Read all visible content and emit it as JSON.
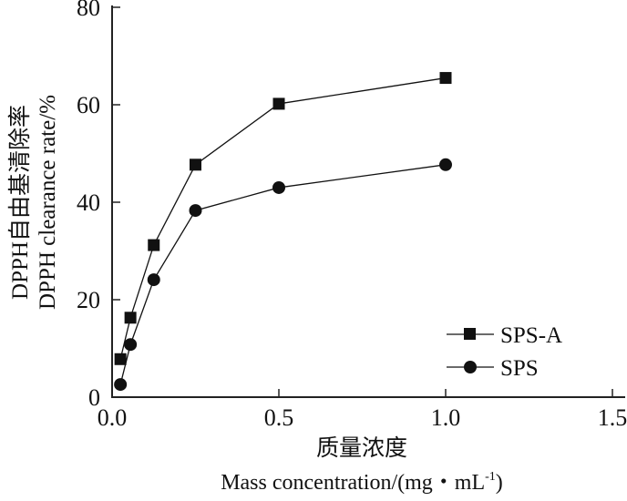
{
  "chart_data": {
    "type": "line",
    "title": "",
    "ylabel_cn": "DPPH自由基清除率",
    "ylabel": "DPPH clearance rate/%",
    "xlabel_cn": "质量浓度",
    "xlabel": "Mass concentration/(mg・mL",
    "xlabel_sup": "-1",
    "xlabel_end": ")",
    "xlim": [
      0,
      1.5
    ],
    "ylim": [
      0,
      80
    ],
    "xticks": [
      "0.0",
      "0.5",
      "1.0",
      "1.5"
    ],
    "xtick_values": [
      0,
      0.5,
      1.0,
      1.5
    ],
    "yticks": [
      "0",
      "20",
      "40",
      "60",
      "80"
    ],
    "ytick_values": [
      0,
      20,
      40,
      60,
      80
    ],
    "grid": false,
    "legend_position": "bottom-right",
    "x": [
      0.025,
      0.055,
      0.125,
      0.25,
      0.5,
      1.0
    ],
    "series": [
      {
        "name": "SPS-A",
        "marker": "square",
        "values": [
          7.8,
          16.3,
          31.2,
          47.7,
          60.2,
          65.5
        ]
      },
      {
        "name": "SPS",
        "marker": "circle",
        "values": [
          2.6,
          10.8,
          24.1,
          38.3,
          43.0,
          47.7
        ]
      }
    ]
  }
}
